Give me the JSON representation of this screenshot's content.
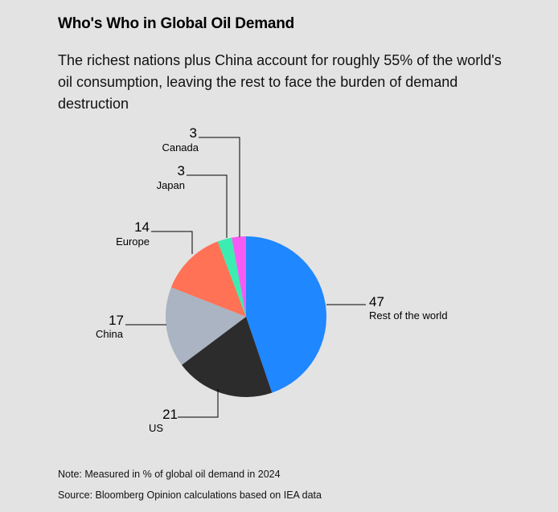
{
  "title": "Who's Who in Global Oil Demand",
  "subtitle": "The richest nations plus China account for roughly 55% of the world's oil consumption, leaving the rest to face the burden of demand destruction",
  "note": "Note: Measured in % of global oil demand in 2024",
  "source": "Source: Bloomberg Opinion calculations based on IEA data",
  "chart_data": {
    "type": "pie",
    "title": "Who's Who in Global Oil Demand",
    "unit": "% of global oil demand in 2024",
    "slices": [
      {
        "label": "Rest of the world",
        "value": 47,
        "color": "#1f87ff"
      },
      {
        "label": "US",
        "value": 21,
        "color": "#2c2c2c"
      },
      {
        "label": "China",
        "value": 17,
        "color": "#aab4c3"
      },
      {
        "label": "Europe",
        "value": 14,
        "color": "#ff7256"
      },
      {
        "label": "Japan",
        "value": 3,
        "color": "#3cedb1"
      },
      {
        "label": "Canada",
        "value": 3,
        "color": "#f55bf3"
      }
    ]
  }
}
